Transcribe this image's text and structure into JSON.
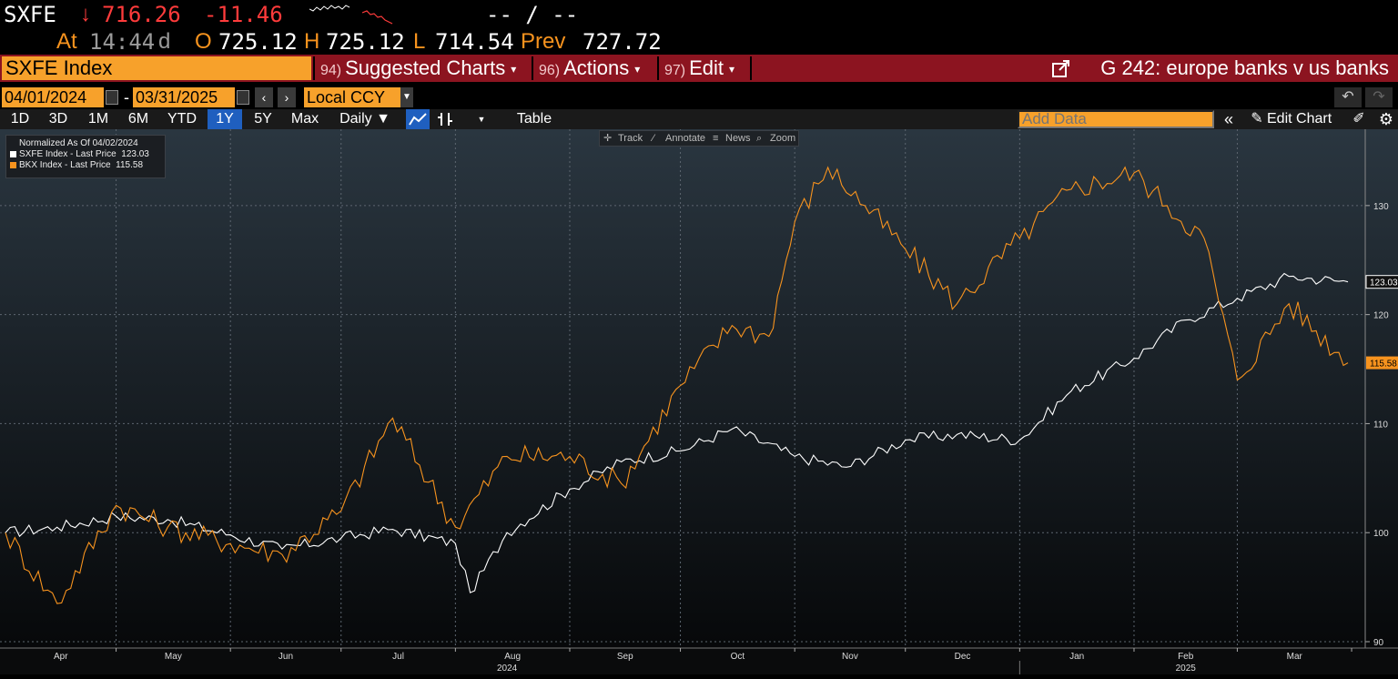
{
  "quote": {
    "ticker": "SXFE",
    "arrow": "↓",
    "last": "716.26",
    "change": "-11.46",
    "bid_ask": "-- / --",
    "at_label": "At",
    "time": "14:44",
    "d_flag": "d",
    "open_label": "O",
    "open": "725.12",
    "high_label": "H",
    "high": "725.12",
    "low_label": "L",
    "low": "714.54",
    "prev_label": "Prev",
    "prev": "727.72"
  },
  "command_bar": {
    "security": "SXFE Index",
    "menus": [
      {
        "num": "94)",
        "label": "Suggested Charts"
      },
      {
        "num": "96)",
        "label": "Actions"
      },
      {
        "num": "97)",
        "label": "Edit"
      }
    ],
    "chart_title": "G 242: europe banks v us banks"
  },
  "range": {
    "start": "04/01/2024",
    "dash": "-",
    "end": "03/31/2025",
    "currency": "Local CCY"
  },
  "toolbar": {
    "periods": [
      "1D",
      "3D",
      "1M",
      "6M",
      "YTD",
      "1Y",
      "5Y",
      "Max"
    ],
    "active_period": "1Y",
    "frequency": "Daily ▼",
    "table": "Table",
    "add_data_placeholder": "Add Data",
    "edit_chart": "Edit Chart"
  },
  "chart_tools": {
    "track": "Track",
    "annotate": "Annotate",
    "news": "News",
    "zoom": "Zoom"
  },
  "legend": {
    "title": "Normalized As Of 04/02/2024",
    "entries": [
      {
        "label": "SXFE Index - Last Price",
        "value": "123.03",
        "color": "#ffffff"
      },
      {
        "label": "BKX Index - Last Price",
        "value": "115.58",
        "color": "#f7931e"
      }
    ]
  },
  "colors": {
    "accent_orange": "#f7931e",
    "command_red": "#8c1420",
    "down_red": "#ff3b3b",
    "active_blue": "#1f5fbf"
  },
  "chart_data": {
    "type": "line",
    "x_months": [
      "Apr",
      "May",
      "Jun",
      "Jul",
      "Aug",
      "Sep",
      "Oct",
      "Nov",
      "Dec",
      "Jan",
      "Feb",
      "Mar"
    ],
    "x_years": [
      "2024",
      "2025"
    ],
    "y_ticks": [
      90,
      100,
      110,
      120,
      130
    ],
    "ylim": [
      90,
      137
    ],
    "grid": true,
    "legend_position": "top-left",
    "series": [
      {
        "name": "SXFE Index - Last Price",
        "color": "#ffffff",
        "last_value": "123.03",
        "x": [
          "2024-04-01",
          "2024-04-15",
          "2024-05-01",
          "2024-05-15",
          "2024-06-01",
          "2024-06-15",
          "2024-07-01",
          "2024-07-15",
          "2024-08-01",
          "2024-08-05",
          "2024-08-15",
          "2024-09-01",
          "2024-09-15",
          "2024-10-01",
          "2024-10-15",
          "2024-11-01",
          "2024-11-15",
          "2024-12-01",
          "2024-12-15",
          "2025-01-01",
          "2025-01-15",
          "2025-02-01",
          "2025-02-15",
          "2025-03-01",
          "2025-03-15",
          "2025-03-31"
        ],
        "y": [
          100,
          100.5,
          101.5,
          101.2,
          99.8,
          98.5,
          99.5,
          100.3,
          99,
          94.5,
          100,
          104,
          106.5,
          107.5,
          109.5,
          107,
          106,
          108.5,
          109,
          108.5,
          113,
          116,
          119.5,
          121.5,
          123.5,
          123
        ]
      },
      {
        "name": "BKX Index - Last Price",
        "color": "#f7931e",
        "last_value": "115.58",
        "x": [
          "2024-04-01",
          "2024-04-15",
          "2024-05-01",
          "2024-05-15",
          "2024-06-01",
          "2024-06-15",
          "2024-07-01",
          "2024-07-15",
          "2024-08-01",
          "2024-08-15",
          "2024-09-01",
          "2024-09-15",
          "2024-10-01",
          "2024-10-15",
          "2024-10-25",
          "2024-11-01",
          "2024-11-10",
          "2024-11-20",
          "2024-12-01",
          "2024-12-15",
          "2025-01-01",
          "2025-01-15",
          "2025-02-01",
          "2025-02-10",
          "2025-02-20",
          "2025-03-01",
          "2025-03-15",
          "2025-03-31"
        ],
        "y": [
          100,
          93.5,
          102.5,
          100.5,
          99,
          98,
          102,
          110.5,
          100.5,
          107,
          107,
          104.5,
          113.5,
          119,
          118,
          128.5,
          133.5,
          130,
          126,
          121,
          127,
          131.5,
          133,
          130,
          127,
          114,
          121,
          115.58
        ]
      }
    ]
  }
}
